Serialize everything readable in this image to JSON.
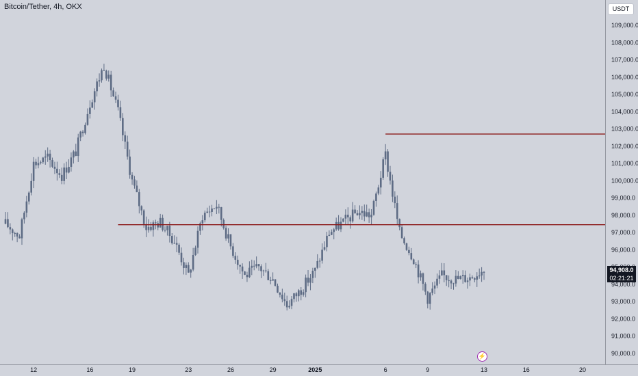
{
  "header": {
    "symbol_title": "Bitcoin/Tether, 4h, OKX"
  },
  "toolbar": {
    "currency": "USDT"
  },
  "price_scale": {
    "labels": [
      "109,000.0",
      "108,000.0",
      "107,000.0",
      "106,000.0",
      "105,000.0",
      "104,000.0",
      "103,000.0",
      "102,000.0",
      "101,000.0",
      "100,000.0",
      "99,000.0",
      "98,000.0",
      "97,000.0",
      "96,000.0",
      "95,000.0",
      "94,000.0",
      "93,000.0",
      "92,000.0",
      "91,000.0",
      "90,000.0"
    ],
    "last_price": "94,908.0",
    "countdown": "02:21:21"
  },
  "time_scale": {
    "labels": [
      {
        "text": "12",
        "bold": false
      },
      {
        "text": "16",
        "bold": false
      },
      {
        "text": "19",
        "bold": false
      },
      {
        "text": "23",
        "bold": false
      },
      {
        "text": "26",
        "bold": false
      },
      {
        "text": "29",
        "bold": false
      },
      {
        "text": "2025",
        "bold": true
      },
      {
        "text": "6",
        "bold": false
      },
      {
        "text": "9",
        "bold": false
      },
      {
        "text": "13",
        "bold": false
      },
      {
        "text": "16",
        "bold": false
      },
      {
        "text": "20",
        "bold": false
      }
    ]
  },
  "colors": {
    "background": "#d1d4dc",
    "candle": "#5d6b84",
    "level_line": "#8b1a1a",
    "text": "#131722"
  },
  "icons": {
    "event_marker": "lightning-icon"
  },
  "chart_data": {
    "type": "candlestick",
    "title": "Bitcoin/Tether, 4h, OKX",
    "ylim": [
      89500,
      109700
    ],
    "x_range": [
      "2024-12-10",
      "2025-01-21"
    ],
    "levels": [
      {
        "price": 102700,
        "start": "2025-01-06"
      },
      {
        "price": 97450,
        "start": "2024-12-18"
      }
    ],
    "anchors": [
      {
        "t": "2024-12-10",
        "p": 97500
      },
      {
        "t": "2024-12-11",
        "p": 96800
      },
      {
        "t": "2024-12-12",
        "p": 101000
      },
      {
        "t": "2024-12-13",
        "p": 101300
      },
      {
        "t": "2024-12-14",
        "p": 100300
      },
      {
        "t": "2024-12-15",
        "p": 101700
      },
      {
        "t": "2024-12-16",
        "p": 104500
      },
      {
        "t": "2024-12-17",
        "p": 106700
      },
      {
        "t": "2024-12-18",
        "p": 104000
      },
      {
        "t": "2024-12-19",
        "p": 100000
      },
      {
        "t": "2024-12-20",
        "p": 97300
      },
      {
        "t": "2024-12-21",
        "p": 97600
      },
      {
        "t": "2024-12-22",
        "p": 96500
      },
      {
        "t": "2024-12-23",
        "p": 94500
      },
      {
        "t": "2024-12-24",
        "p": 98000
      },
      {
        "t": "2024-12-25",
        "p": 98600
      },
      {
        "t": "2024-12-26",
        "p": 96200
      },
      {
        "t": "2024-12-27",
        "p": 94500
      },
      {
        "t": "2024-12-28",
        "p": 95000
      },
      {
        "t": "2024-12-29",
        "p": 94300
      },
      {
        "t": "2024-12-30",
        "p": 92800
      },
      {
        "t": "2024-12-31",
        "p": 93700
      },
      {
        "t": "2025-01-01",
        "p": 94800
      },
      {
        "t": "2025-01-02",
        "p": 97000
      },
      {
        "t": "2025-01-03",
        "p": 97600
      },
      {
        "t": "2025-01-04",
        "p": 98200
      },
      {
        "t": "2025-01-05",
        "p": 98000
      },
      {
        "t": "2025-01-06",
        "p": 101500
      },
      {
        "t": "2025-01-07",
        "p": 97000
      },
      {
        "t": "2025-01-08",
        "p": 95500
      },
      {
        "t": "2025-01-09",
        "p": 93200
      },
      {
        "t": "2025-01-10",
        "p": 94500
      },
      {
        "t": "2025-01-11",
        "p": 94300
      },
      {
        "t": "2025-01-12",
        "p": 94400
      },
      {
        "t": "2025-01-13",
        "p": 94900
      }
    ]
  }
}
